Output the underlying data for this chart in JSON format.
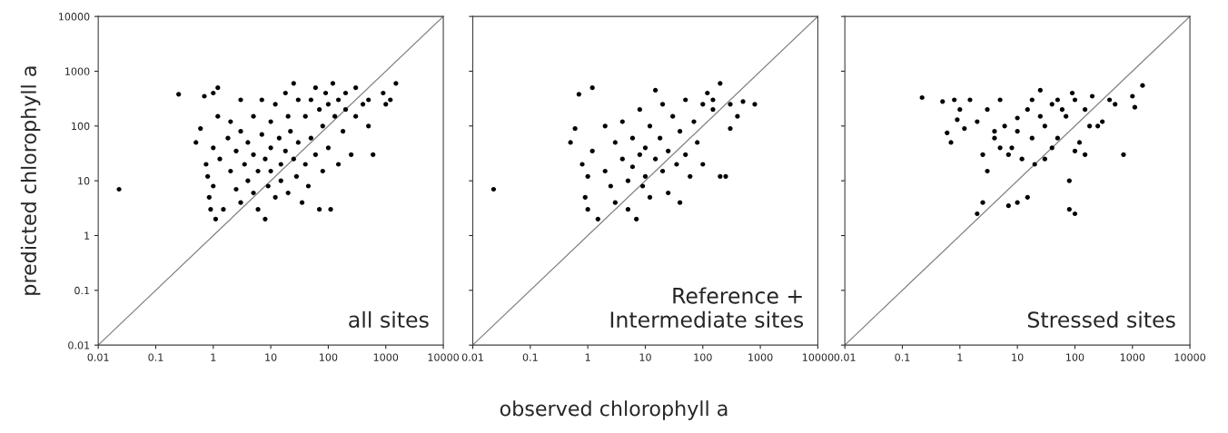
{
  "chart_data": [
    {
      "type": "scatter",
      "ylabel": "predicted chlorophyll a",
      "annotations": [
        "all sites"
      ],
      "log": "xy",
      "grid": false,
      "xlim": [
        0.01,
        10000
      ],
      "ylim": [
        0.01,
        10000
      ],
      "xticks": [
        0.01,
        0.1,
        1,
        10,
        100,
        1000,
        10000
      ],
      "yticks": [
        0.01,
        0.1,
        1,
        10,
        100,
        1000,
        10000
      ],
      "series": [
        {
          "color": "#000000",
          "marker": "circle",
          "x": [
            0.023,
            0.25,
            0.5,
            0.6,
            0.7,
            0.75,
            0.8,
            0.85,
            0.9,
            1,
            1,
            1,
            1.1,
            1.2,
            1.2,
            1.3,
            1.5,
            1.8,
            2,
            2,
            2.5,
            2.5,
            3,
            3,
            3,
            3.5,
            4,
            4,
            5,
            5,
            5,
            6,
            6,
            7,
            7,
            8,
            8,
            9,
            10,
            10,
            10,
            12,
            12,
            14,
            15,
            15,
            18,
            18,
            20,
            20,
            22,
            25,
            25,
            28,
            30,
            30,
            35,
            40,
            40,
            45,
            50,
            50,
            60,
            60,
            70,
            70,
            80,
            80,
            90,
            100,
            100,
            110,
            120,
            130,
            150,
            150,
            180,
            200,
            200,
            250,
            300,
            300,
            400,
            500,
            500,
            600,
            900,
            1000,
            1500,
            1200
          ],
          "values": [
            7,
            380,
            50,
            90,
            350,
            20,
            12,
            5,
            3,
            400,
            40,
            8,
            2,
            500,
            150,
            25,
            3,
            60,
            15,
            120,
            7,
            35,
            4,
            300,
            80,
            20,
            10,
            50,
            150,
            30,
            6,
            3,
            15,
            70,
            300,
            25,
            2,
            8,
            40,
            120,
            15,
            5,
            250,
            60,
            20,
            10,
            400,
            35,
            150,
            6,
            80,
            25,
            600,
            12,
            300,
            50,
            4,
            150,
            20,
            8,
            300,
            60,
            30,
            500,
            200,
            3,
            100,
            15,
            400,
            250,
            40,
            3,
            600,
            150,
            300,
            20,
            80,
            400,
            200,
            30,
            150,
            500,
            250,
            300,
            100,
            30,
            400,
            250,
            600,
            300
          ]
        },
        {
          "type": "line",
          "color": "#808080",
          "x": [
            0.01,
            10000
          ],
          "values": [
            0.01,
            10000
          ]
        }
      ]
    },
    {
      "type": "scatter",
      "xlabel": "observed chlorophyll a",
      "annotations": [
        "Reference +\nIntermediate sites"
      ],
      "log": "xy",
      "grid": false,
      "tick_labels": "x",
      "xlim": [
        0.01,
        10000
      ],
      "ylim": [
        0.01,
        10000
      ],
      "xticks": [
        0.01,
        0.1,
        1,
        10,
        100,
        1000,
        10000
      ],
      "yticks": [
        0.01,
        0.1,
        1,
        10,
        100,
        1000,
        10000
      ],
      "series": [
        {
          "color": "#000000",
          "marker": "circle",
          "x": [
            0.023,
            0.5,
            0.6,
            0.7,
            0.8,
            0.9,
            1,
            1,
            1.2,
            1.2,
            1.5,
            2,
            2,
            2.5,
            3,
            3,
            4,
            4,
            5,
            5,
            6,
            6,
            7,
            8,
            8,
            9,
            10,
            10,
            12,
            12,
            15,
            15,
            18,
            20,
            20,
            25,
            25,
            30,
            35,
            40,
            40,
            50,
            50,
            60,
            70,
            80,
            100,
            100,
            120,
            150,
            150,
            200,
            200,
            250,
            300,
            300,
            400,
            500,
            800
          ],
          "values": [
            7,
            50,
            90,
            380,
            20,
            5,
            12,
            3,
            500,
            35,
            2,
            100,
            15,
            8,
            50,
            4,
            25,
            120,
            10,
            3,
            60,
            18,
            2,
            200,
            30,
            8,
            40,
            12,
            100,
            5,
            450,
            25,
            60,
            15,
            250,
            35,
            6,
            150,
            20,
            80,
            4,
            300,
            30,
            12,
            120,
            50,
            250,
            20,
            400,
            200,
            300,
            600,
            12,
            12,
            250,
            90,
            150,
            280,
            250
          ]
        },
        {
          "type": "line",
          "color": "#808080",
          "x": [
            0.01,
            10000
          ],
          "values": [
            0.01,
            10000
          ]
        }
      ]
    },
    {
      "type": "scatter",
      "annotations": [
        "Stressed sites"
      ],
      "log": "xy",
      "grid": false,
      "tick_labels": "x",
      "xlim": [
        0.01,
        10000
      ],
      "ylim": [
        0.01,
        10000
      ],
      "xticks": [
        0.01,
        0.1,
        1,
        10,
        100,
        1000,
        10000
      ],
      "yticks": [
        0.01,
        0.1,
        1,
        10,
        100,
        1000,
        10000
      ],
      "series": [
        {
          "color": "#000000",
          "marker": "circle",
          "x": [
            0.22,
            0.5,
            0.6,
            0.7,
            0.8,
            0.9,
            1,
            1.2,
            1.5,
            2,
            2,
            2.5,
            2.5,
            3,
            3,
            4,
            4,
            5,
            5,
            6,
            7,
            7,
            8,
            10,
            10,
            10,
            12,
            15,
            15,
            18,
            18,
            20,
            25,
            25,
            30,
            30,
            40,
            40,
            50,
            50,
            60,
            70,
            80,
            80,
            90,
            100,
            100,
            100,
            120,
            150,
            150,
            180,
            200,
            250,
            300,
            400,
            500,
            700,
            1000,
            1500,
            1100
          ],
          "values": [
            330,
            280,
            75,
            50,
            300,
            130,
            200,
            90,
            300,
            120,
            2.5,
            4,
            30,
            200,
            15,
            60,
            80,
            300,
            40,
            100,
            3.5,
            30,
            40,
            4,
            80,
            140,
            25,
            200,
            5,
            300,
            60,
            20,
            150,
            450,
            100,
            25,
            250,
            40,
            300,
            60,
            200,
            150,
            3,
            10,
            400,
            2.5,
            300,
            35,
            50,
            200,
            30,
            100,
            350,
            100,
            120,
            300,
            250,
            30,
            350,
            550,
            220
          ]
        },
        {
          "type": "line",
          "color": "#808080",
          "x": [
            0.01,
            10000
          ],
          "values": [
            0.01,
            10000
          ]
        }
      ]
    }
  ]
}
